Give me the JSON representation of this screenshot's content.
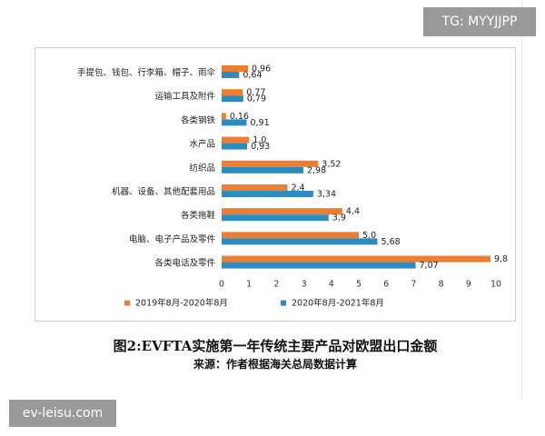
{
  "tg_tag": "TG: MYYJJPP",
  "site_tag": "ev-leisu.com",
  "caption_title": "图2:EVFTA实施第一年传统主要产品对欧盟出口金额",
  "caption_source": "来源：作者根据海关总局数据计算",
  "chart_data": {
    "type": "bar",
    "orientation": "horizontal",
    "categories": [
      "手提包、钱包、行李箱、帽子、雨伞",
      "运输工具及附件",
      "各类钢铁",
      "水产品",
      "纺织品",
      "机器、设备、其他配套用品",
      "各类拖鞋",
      "电脑、电子产品及零件",
      "各类电话及零件"
    ],
    "series": [
      {
        "name": "2019年8月-2020年8月",
        "color": "#ED7D31",
        "values": [
          0.96,
          0.77,
          0.16,
          1.0,
          3.52,
          2.4,
          4.4,
          5.0,
          9.8
        ],
        "labels": [
          "0,96",
          "0,77",
          "0,16",
          "1,0",
          "3,52",
          "2,4",
          "4,4",
          "5,0",
          "9,8"
        ]
      },
      {
        "name": "2020年8月-2021年8月",
        "color": "#2E8BC0",
        "values": [
          0.64,
          0.79,
          0.91,
          0.93,
          2.98,
          3.34,
          3.9,
          5.68,
          7.07
        ],
        "labels": [
          "0,64",
          "0,79",
          "0,91",
          "0,93",
          "2,98",
          "3,34",
          "3,9",
          "5,68",
          "7,07"
        ]
      }
    ],
    "xlim": [
      0,
      10
    ],
    "xticks": [
      0,
      1,
      2,
      3,
      4,
      5,
      6,
      7,
      8,
      9,
      10
    ],
    "grid": false,
    "legend": "bottom"
  }
}
